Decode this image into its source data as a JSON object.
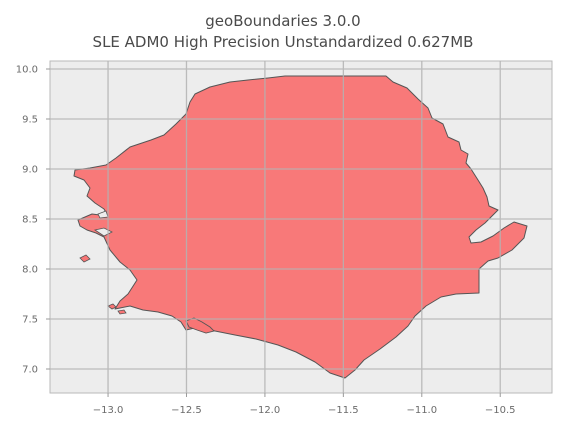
{
  "title": {
    "line1": "geoBoundaries 3.0.0",
    "line2": "SLE ADM0 High Precision Unstandardized 0.627MB"
  },
  "chart_data": {
    "type": "map",
    "x_ticks": [
      "-13.0",
      "-12.5",
      "-12.0",
      "-11.5",
      "-11.0",
      "-10.5"
    ],
    "y_ticks": [
      "10.0",
      "9.5",
      "9.0",
      "8.5",
      "8.0",
      "7.5",
      "7.0"
    ],
    "x_tick_values": [
      -13.0,
      -12.5,
      -12.0,
      -11.5,
      -11.0,
      -10.5
    ],
    "y_tick_values": [
      10.0,
      9.5,
      9.0,
      8.5,
      8.0,
      7.5,
      7.0
    ],
    "xlim": [
      -13.37,
      -10.17
    ],
    "ylim": [
      6.76,
      10.08
    ],
    "grid": true,
    "colors": {
      "background": "#ededed",
      "fill": "#f87575",
      "edge": "#555555",
      "grid": "#b3b3b3"
    }
  }
}
